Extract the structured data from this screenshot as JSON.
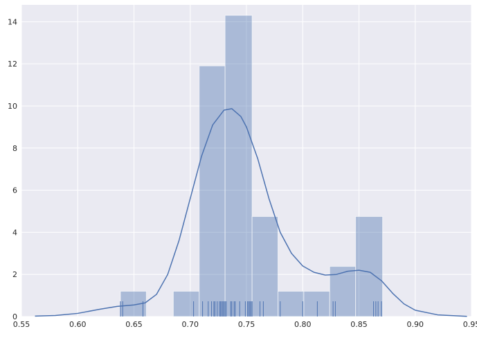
{
  "chart_data": {
    "type": "histogram",
    "title": "",
    "xlabel": "",
    "ylabel": "",
    "xlim": [
      0.55,
      0.95
    ],
    "ylim": [
      0,
      14.8
    ],
    "xticks": [
      "0.55",
      "0.60",
      "0.65",
      "0.70",
      "0.75",
      "0.80",
      "0.85",
      "0.90",
      "0.95"
    ],
    "yticks": [
      "0",
      "2",
      "4",
      "6",
      "8",
      "10",
      "12",
      "14"
    ],
    "grid": true,
    "bins": [
      {
        "x0": 0.638,
        "x1": 0.661,
        "density": 1.2
      },
      {
        "x0": 0.661,
        "x1": 0.685,
        "density": 0
      },
      {
        "x0": 0.685,
        "x1": 0.708,
        "density": 1.2
      },
      {
        "x0": 0.708,
        "x1": 0.731,
        "density": 11.9
      },
      {
        "x0": 0.731,
        "x1": 0.755,
        "density": 14.3
      },
      {
        "x0": 0.755,
        "x1": 0.778,
        "density": 4.75
      },
      {
        "x0": 0.778,
        "x1": 0.801,
        "density": 1.2
      },
      {
        "x0": 0.801,
        "x1": 0.824,
        "density": 1.2
      },
      {
        "x0": 0.824,
        "x1": 0.847,
        "density": 2.38
      },
      {
        "x0": 0.847,
        "x1": 0.871,
        "density": 4.75
      }
    ],
    "kde": {
      "x": [
        0.562,
        0.58,
        0.6,
        0.62,
        0.635,
        0.65,
        0.66,
        0.67,
        0.68,
        0.69,
        0.7,
        0.71,
        0.72,
        0.73,
        0.737,
        0.745,
        0.75,
        0.76,
        0.77,
        0.78,
        0.79,
        0.8,
        0.81,
        0.82,
        0.83,
        0.84,
        0.85,
        0.86,
        0.87,
        0.88,
        0.89,
        0.9,
        0.92,
        0.946
      ],
      "y": [
        0.02,
        0.05,
        0.15,
        0.35,
        0.48,
        0.55,
        0.65,
        1.05,
        2.0,
        3.6,
        5.6,
        7.6,
        9.1,
        9.8,
        9.87,
        9.5,
        9.0,
        7.5,
        5.6,
        4.0,
        3.0,
        2.4,
        2.1,
        1.97,
        2.0,
        2.15,
        2.2,
        2.1,
        1.7,
        1.1,
        0.6,
        0.3,
        0.08,
        0.01
      ]
    },
    "rug": [
      0.638,
      0.64,
      0.658,
      0.703,
      0.711,
      0.716,
      0.719,
      0.721,
      0.722,
      0.724,
      0.726,
      0.727,
      0.728,
      0.729,
      0.73,
      0.731,
      0.732,
      0.736,
      0.737,
      0.739,
      0.74,
      0.744,
      0.749,
      0.751,
      0.752,
      0.753,
      0.754,
      0.755,
      0.762,
      0.765,
      0.78,
      0.8,
      0.813,
      0.827,
      0.829,
      0.863,
      0.865,
      0.867,
      0.87
    ],
    "colors": {
      "background": "#eaeaf2",
      "grid": "#ffffff",
      "bar_fill": "#4c72b0",
      "bar_opacity": 0.4,
      "line": "#4c72b0"
    }
  }
}
